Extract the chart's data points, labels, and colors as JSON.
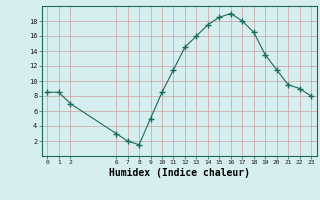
{
  "x": [
    0,
    1,
    2,
    6,
    7,
    8,
    9,
    10,
    11,
    12,
    13,
    14,
    15,
    16,
    17,
    18,
    19,
    20,
    21,
    22,
    23
  ],
  "y": [
    8.5,
    8.5,
    7,
    3,
    2,
    1.5,
    5,
    8.5,
    11.5,
    14.5,
    16,
    17.5,
    18.5,
    19,
    18,
    16.5,
    13.5,
    11.5,
    9.5,
    9,
    8
  ],
  "line_color": "#1a6b5a",
  "marker": "+",
  "marker_size": 4,
  "bg_color": "#d6eeee",
  "grid_color": "#c8a0a0",
  "xlabel": "Humidex (Indice chaleur)",
  "xlabel_fontsize": 7,
  "xticks": [
    0,
    1,
    2,
    6,
    7,
    8,
    9,
    10,
    11,
    12,
    13,
    14,
    15,
    16,
    17,
    18,
    19,
    20,
    21,
    22,
    23
  ],
  "yticks": [
    2,
    4,
    6,
    8,
    10,
    12,
    14,
    16,
    18
  ],
  "ylim": [
    0,
    20
  ],
  "xlim": [
    -0.5,
    23.5
  ]
}
